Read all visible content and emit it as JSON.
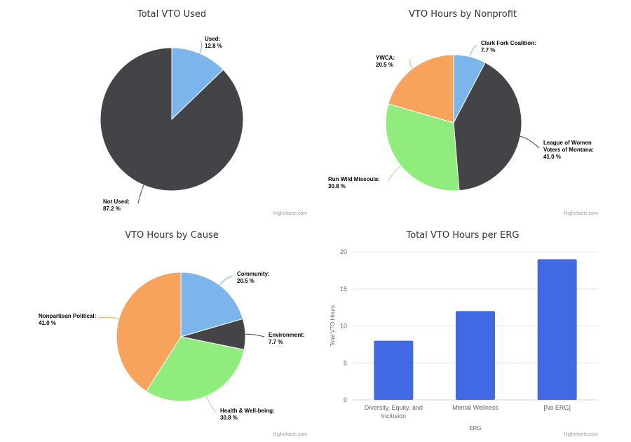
{
  "credit": "Highcharts.com",
  "chart_data": [
    {
      "type": "pie",
      "title": "Total VTO Used",
      "series": [
        {
          "slices": [
            {
              "name": "Used",
              "value": 12.8,
              "label": "Used:",
              "value_label": "12.8 %",
              "color": "#7cb5ec"
            },
            {
              "name": "Not Used",
              "value": 87.2,
              "label": "Not Used:",
              "value_label": "87.2 %",
              "color": "#434348"
            }
          ]
        }
      ]
    },
    {
      "type": "pie",
      "title": "VTO Hours by Nonprofit",
      "series": [
        {
          "slices": [
            {
              "name": "Clark Fork Coalition",
              "value": 7.7,
              "label": "Clark Fork Coalition:",
              "value_label": "7.7 %",
              "color": "#7cb5ec"
            },
            {
              "name": "League of Women Voters of Montana",
              "value": 41.0,
              "label": "League of Women\nVoters of Montana:",
              "value_label": "41.0 %",
              "color": "#434348"
            },
            {
              "name": "Run Wild Missoula",
              "value": 30.8,
              "label": "Run Wild Missoula:",
              "value_label": "30.8 %",
              "color": "#90ed7d"
            },
            {
              "name": "YWCA",
              "value": 20.5,
              "label": "YWCA:",
              "value_label": "20.5 %",
              "color": "#f7a35c"
            }
          ]
        }
      ]
    },
    {
      "type": "pie",
      "title": "VTO Hours by Cause",
      "series": [
        {
          "slices": [
            {
              "name": "Community",
              "value": 20.5,
              "label": "Community:",
              "value_label": "20.5 %",
              "color": "#7cb5ec"
            },
            {
              "name": "Environment",
              "value": 7.7,
              "label": "Environment:",
              "value_label": "7.7 %",
              "color": "#434348"
            },
            {
              "name": "Health & Well-being",
              "value": 30.8,
              "label": "Health & Well-being:",
              "value_label": "30.8 %",
              "color": "#90ed7d"
            },
            {
              "name": "Nonpartisan Political",
              "value": 41.0,
              "label": "Nonpartisan Political:",
              "value_label": "41.0 %",
              "color": "#f7a35c"
            }
          ]
        }
      ]
    },
    {
      "type": "bar",
      "title": "Total VTO Hours per ERG",
      "xlabel": "ERG",
      "ylabel": "Total VTO Hours",
      "ylim": [
        0,
        20
      ],
      "yticks": [
        0,
        5,
        10,
        15,
        20
      ],
      "categories": [
        "Diversity, Equity, and Inclusion",
        "Mental Wellness",
        "[No ERG]"
      ],
      "category_lines": [
        [
          "Diversity, Equity, and",
          "Inclusion"
        ],
        [
          "Mental Wellness"
        ],
        [
          "[No ERG]"
        ]
      ],
      "values": [
        8,
        12,
        19
      ],
      "color": "#4169e1",
      "grid": true
    }
  ]
}
